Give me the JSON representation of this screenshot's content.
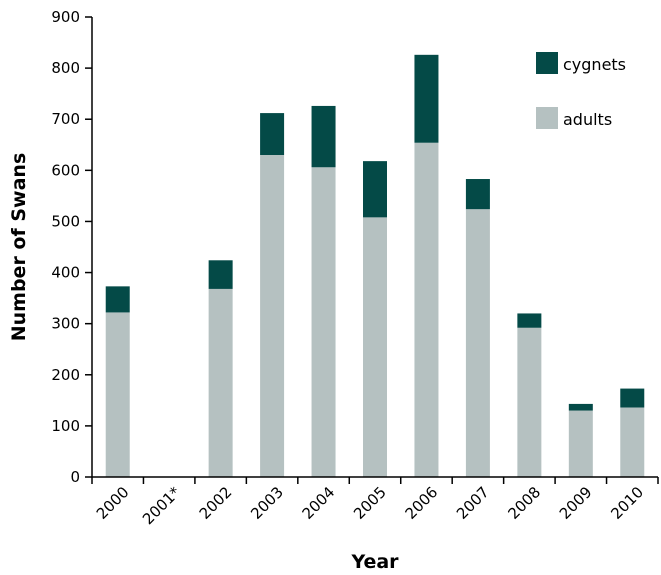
{
  "chart_data": {
    "type": "bar",
    "stacked": true,
    "categories": [
      "2000",
      "2001*",
      "2002",
      "2003",
      "2004",
      "2005",
      "2006",
      "2007",
      "2008",
      "2009",
      "2010"
    ],
    "series": [
      {
        "name": "adults",
        "values": [
          322,
          0,
          368,
          630,
          606,
          508,
          654,
          524,
          292,
          130,
          136
        ],
        "color": "#b5c1c1"
      },
      {
        "name": "cygnets",
        "values": [
          51,
          0,
          56,
          82,
          120,
          110,
          172,
          59,
          28,
          13,
          37
        ],
        "color": "#044a47"
      }
    ],
    "xlabel": "Year",
    "ylabel": "Number of Swans",
    "ylim": [
      0,
      900
    ],
    "yticks": [
      0,
      100,
      200,
      300,
      400,
      500,
      600,
      700,
      800,
      900
    ],
    "grid": false,
    "legend_position": "top-right",
    "legend_order": [
      "cygnets",
      "adults"
    ]
  }
}
